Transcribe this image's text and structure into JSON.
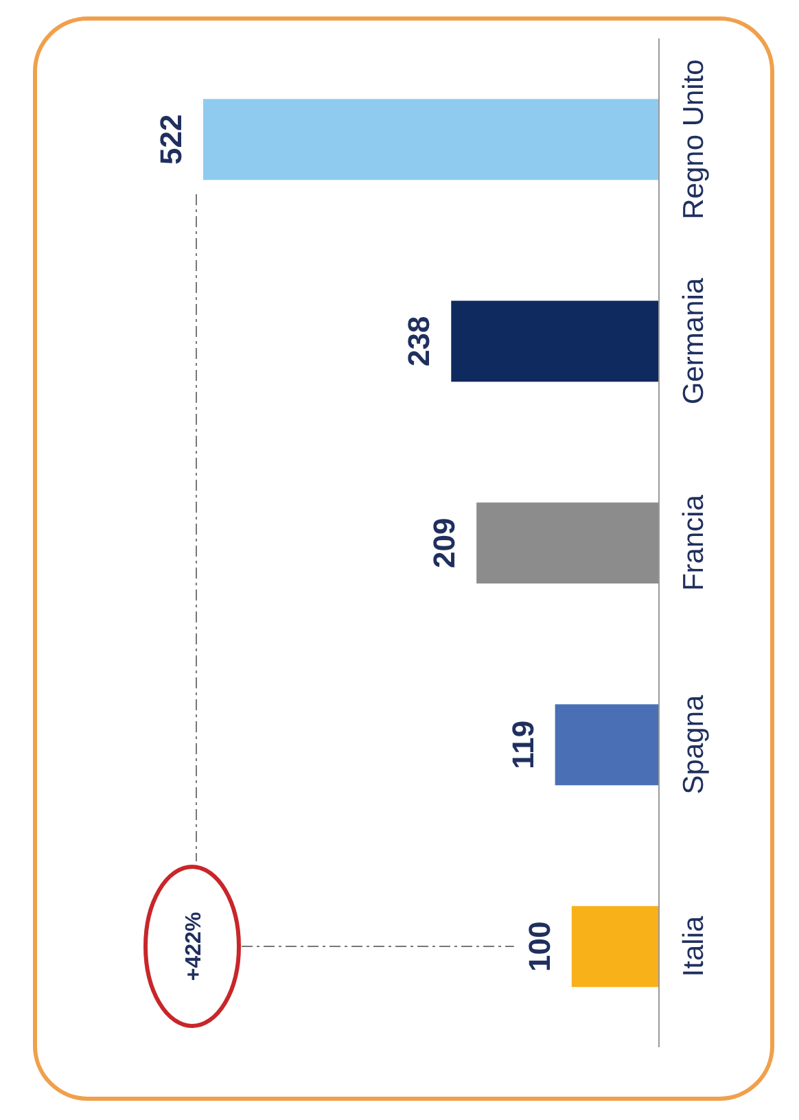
{
  "chart_data": {
    "type": "bar",
    "orientation": "horizontal",
    "categories": [
      "Regno Unito",
      "Germania",
      "Francia",
      "Spagna",
      "Italia"
    ],
    "values": [
      522,
      238,
      209,
      119,
      100
    ],
    "colors": [
      "#8fcbef",
      "#0f2a5e",
      "#8c8c8c",
      "#4a6fb5",
      "#f9b11a"
    ],
    "data_labels": true,
    "annotations": [
      "+422%"
    ]
  }
}
